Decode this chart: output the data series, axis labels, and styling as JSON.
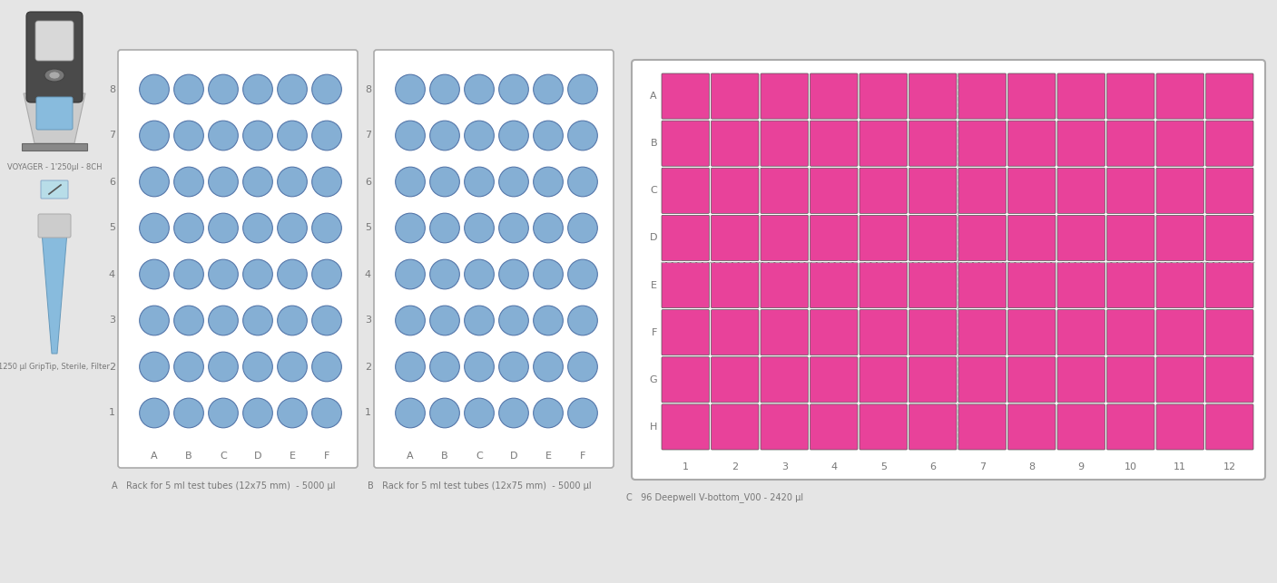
{
  "bg_color": "#e5e5e5",
  "rack_bg": "#ffffff",
  "circle_color": "#85afd4",
  "circle_edge": "#5577aa",
  "well_color": "#e8429a",
  "well_edge": "#555555",
  "rack_rows": 8,
  "rack_cols": 6,
  "rack_col_labels": [
    "A",
    "B",
    "C",
    "D",
    "E",
    "F"
  ],
  "rack_row_labels": [
    "1",
    "2",
    "3",
    "4",
    "5",
    "6",
    "7",
    "8"
  ],
  "plate_row_labels": [
    "A",
    "B",
    "C",
    "D",
    "E",
    "F",
    "G",
    "H"
  ],
  "plate_col_labels": [
    "1",
    "2",
    "3",
    "4",
    "5",
    "6",
    "7",
    "8",
    "9",
    "10",
    "11",
    "12"
  ],
  "rack_A_title": "A   Rack for 5 ml test tubes (12x75 mm)  - 5000 µl",
  "rack_B_title": "B   Rack for 5 ml test tubes (12x75 mm)  - 5000 µl",
  "plate_C_title": "C   96 Deepwell V-bottom_V00 - 2420 µl",
  "voyager_label": "VOYAGER - 1'250µl - 8CH",
  "tip_label": "1250 µl GripTip, Sterile, Filter",
  "label_color": "#777777",
  "dashed_line_color": "#aaaaaa",
  "pipette_dark": "#4a4a4a",
  "pipette_mid": "#888888",
  "pipette_light": "#cccccc",
  "pipette_blue": "#88bbdd"
}
